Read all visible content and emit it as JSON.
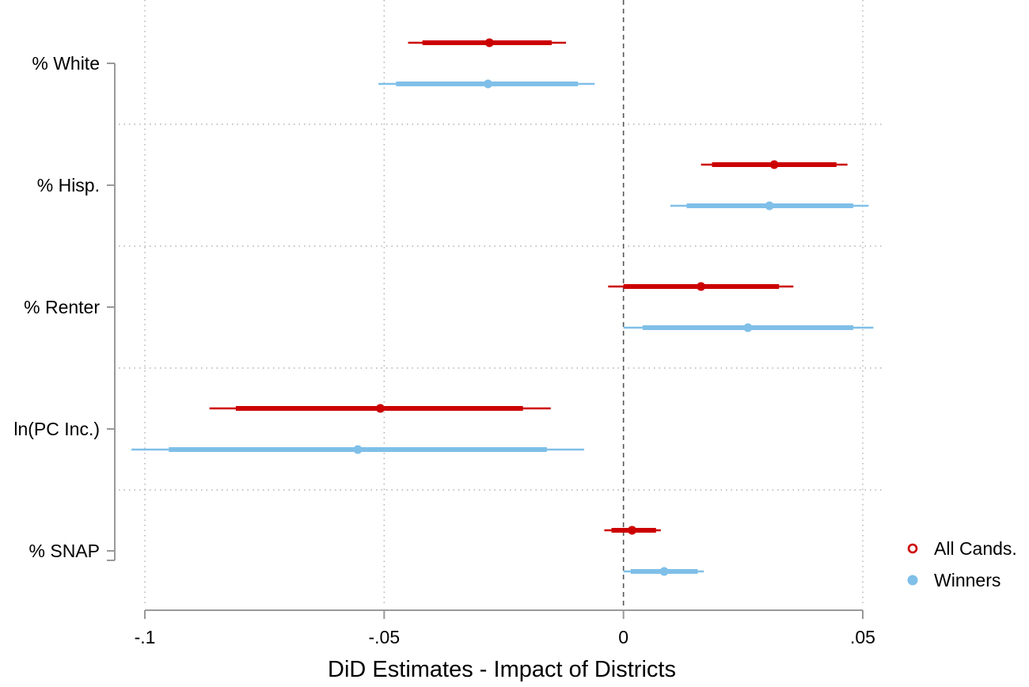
{
  "chart_data": {
    "type": "coefficient-plot",
    "xlabel": "DiD Estimates - Impact of Districts",
    "xlim": [
      -0.1,
      0.05
    ],
    "xticks": [
      {
        "value": -0.1,
        "label": "-.1"
      },
      {
        "value": -0.05,
        "label": "-.05"
      },
      {
        "value": 0,
        "label": "0"
      },
      {
        "value": 0.05,
        "label": ".05"
      }
    ],
    "reference_line": 0,
    "grid": true,
    "legend_position": "right",
    "categories": [
      "% White",
      "% Hisp.",
      "% Renter",
      "ln(PC Inc.)",
      "% SNAP"
    ],
    "series": [
      {
        "name": "All Cands.",
        "color": "#cc0000",
        "marker": "hollow-circle",
        "estimates": [
          {
            "category": "% White",
            "estimate": -0.028,
            "ci_inner": [
              -0.042,
              -0.015
            ],
            "ci_outer": [
              -0.045,
              -0.012
            ]
          },
          {
            "category": "% Hisp.",
            "estimate": 0.0315,
            "ci_inner": [
              0.0185,
              0.0445
            ],
            "ci_outer": [
              0.0162,
              0.0468
            ]
          },
          {
            "category": "% Renter",
            "estimate": 0.0162,
            "ci_inner": [
              0.0,
              0.0325
            ],
            "ci_outer": [
              -0.0032,
              0.0355
            ]
          },
          {
            "category": "ln(PC Inc.)",
            "estimate": -0.0508,
            "ci_inner": [
              -0.081,
              -0.021
            ],
            "ci_outer": [
              -0.0865,
              -0.0152
            ]
          },
          {
            "category": "% SNAP",
            "estimate": 0.0018,
            "ci_inner": [
              -0.0025,
              0.0068
            ],
            "ci_outer": [
              -0.004,
              0.0078
            ]
          }
        ]
      },
      {
        "name": "Winners",
        "color": "#7fbfe8",
        "marker": "filled-circle",
        "estimates": [
          {
            "category": "% White",
            "estimate": -0.0283,
            "ci_inner": [
              -0.0475,
              -0.0095
            ],
            "ci_outer": [
              -0.0512,
              -0.006
            ]
          },
          {
            "category": "% Hisp.",
            "estimate": 0.0305,
            "ci_inner": [
              0.0132,
              0.048
            ],
            "ci_outer": [
              0.0098,
              0.0512
            ]
          },
          {
            "category": "% Renter",
            "estimate": 0.026,
            "ci_inner": [
              0.004,
              0.048
            ],
            "ci_outer": [
              0.0,
              0.0522
            ]
          },
          {
            "category": "ln(PC Inc.)",
            "estimate": -0.0555,
            "ci_inner": [
              -0.095,
              -0.016
            ],
            "ci_outer": [
              -0.1028,
              -0.0082
            ]
          },
          {
            "category": "% SNAP",
            "estimate": 0.0085,
            "ci_inner": [
              0.0015,
              0.0155
            ],
            "ci_outer": [
              0.0,
              0.0168
            ]
          }
        ]
      }
    ]
  }
}
